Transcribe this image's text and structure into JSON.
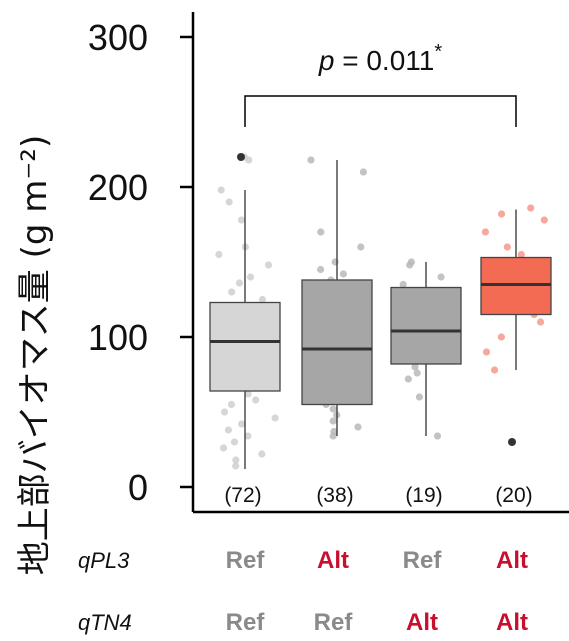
{
  "chart_data": {
    "type": "box",
    "ylabel": "地上部バイオマス量 (g m⁻²)",
    "ylim": [
      0,
      300
    ],
    "yticks": [
      0,
      100,
      200,
      300
    ],
    "significance": {
      "p_prefix": "p",
      "p_text": " = 0.011",
      "marker": "*",
      "from_group": 0,
      "to_group": 3
    },
    "groups": [
      {
        "count_label": "(72)",
        "color": "#d6d6d6",
        "point_color": "#cfcfcf",
        "whisker_low": 12,
        "q1": 64,
        "median": 97,
        "q3": 123,
        "whisker_high": 198,
        "outliers": [
          220
        ],
        "points": [
          220,
          218,
          198,
          190,
          178,
          160,
          155,
          148,
          140,
          136,
          130,
          125,
          118,
          115,
          108,
          104,
          100,
          98,
          95,
          92,
          90,
          88,
          85,
          82,
          78,
          75,
          72,
          70,
          66,
          62,
          58,
          55,
          50,
          46,
          42,
          38,
          34,
          30,
          26,
          22,
          18,
          14
        ]
      },
      {
        "count_label": "(38)",
        "color": "#a6a6a6",
        "point_color": "#b8b8b8",
        "whisker_low": 34,
        "q1": 55,
        "median": 92,
        "q3": 138,
        "whisker_high": 218,
        "outliers": [],
        "points": [
          218,
          210,
          170,
          160,
          150,
          145,
          142,
          138,
          132,
          125,
          118,
          110,
          100,
          92,
          85,
          78,
          70,
          62,
          58,
          55,
          52,
          48,
          44,
          40,
          37,
          34
        ]
      },
      {
        "count_label": "(19)",
        "color": "#a6a6a6",
        "point_color": "#b8b8b8",
        "whisker_low": 34,
        "q1": 82,
        "median": 104,
        "q3": 133,
        "whisker_high": 150,
        "outliers": [],
        "points": [
          150,
          148,
          140,
          135,
          130,
          125,
          118,
          110,
          105,
          102,
          98,
          95,
          90,
          85,
          80,
          76,
          72,
          60,
          34
        ]
      },
      {
        "count_label": "(20)",
        "color": "#f26b52",
        "point_color": "#f3998a",
        "whisker_low": 78,
        "q1": 115,
        "median": 135,
        "q3": 153,
        "whisker_high": 185,
        "outliers": [
          30
        ],
        "points": [
          186,
          182,
          178,
          170,
          160,
          155,
          150,
          145,
          140,
          136,
          134,
          130,
          125,
          120,
          115,
          110,
          100,
          90,
          78
        ]
      }
    ],
    "genotype_rows": [
      {
        "name": "qPL3",
        "values": [
          {
            "text": "Ref",
            "color": "#8a8a8a"
          },
          {
            "text": "Alt",
            "color": "#c8102e"
          },
          {
            "text": "Ref",
            "color": "#8a8a8a"
          },
          {
            "text": "Alt",
            "color": "#c8102e"
          }
        ]
      },
      {
        "name": "qTN4",
        "values": [
          {
            "text": "Ref",
            "color": "#8a8a8a"
          },
          {
            "text": "Ref",
            "color": "#8a8a8a"
          },
          {
            "text": "Alt",
            "color": "#c8102e"
          },
          {
            "text": "Alt",
            "color": "#c8102e"
          }
        ]
      }
    ]
  }
}
